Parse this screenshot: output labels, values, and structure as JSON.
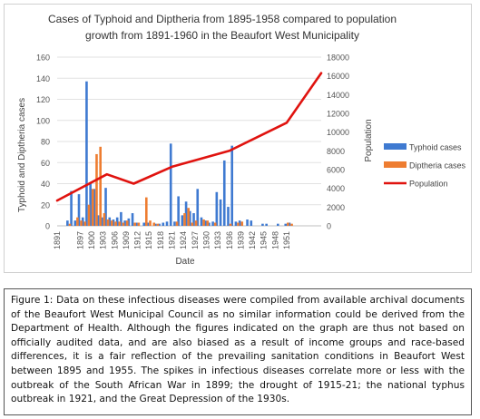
{
  "chart_data": {
    "type": "bar",
    "title_line1": "Cases of Typhoid and Diptheria from 1895-1958 compared to population",
    "title_line2": "growth from 1891-1960 in the Beaufort West Municipality",
    "xlabel": "Date",
    "ylabel_left": "Typhoid and Diptheria cases",
    "ylabel_right": "Population",
    "ylim_left": [
      0,
      160
    ],
    "ylim_right": [
      0,
      18000
    ],
    "yticks_left": [
      "0",
      "20",
      "40",
      "60",
      "80",
      "100",
      "120",
      "140",
      "160"
    ],
    "yticks_right": [
      "0",
      "2000",
      "4000",
      "6000",
      "8000",
      "10000",
      "12000",
      "14000",
      "16000",
      "18000"
    ],
    "xticks": [
      "1891",
      "1897",
      "1900",
      "1903",
      "1906",
      "1909",
      "1912",
      "1915",
      "1918",
      "1921",
      "1924",
      "1927",
      "1930",
      "1933",
      "1936",
      "1939",
      "1942",
      "1945",
      "1948",
      "1951"
    ],
    "x_start": 1891,
    "x_end": 1960,
    "legend": [
      "Typhoid cases",
      "Diptheria cases",
      "Population"
    ],
    "legend_position": "right",
    "grid": "horizontal",
    "series": [
      {
        "name": "Typhoid cases",
        "color": "#3f7ad1",
        "points": [
          [
            1894,
            5
          ],
          [
            1895,
            33
          ],
          [
            1896,
            5
          ],
          [
            1897,
            30
          ],
          [
            1898,
            8
          ],
          [
            1899,
            137
          ],
          [
            1900,
            40
          ],
          [
            1901,
            35
          ],
          [
            1902,
            10
          ],
          [
            1903,
            8
          ],
          [
            1904,
            36
          ],
          [
            1905,
            8
          ],
          [
            1906,
            6
          ],
          [
            1907,
            8
          ],
          [
            1908,
            13
          ],
          [
            1909,
            5
          ],
          [
            1910,
            7
          ],
          [
            1911,
            12
          ],
          [
            1912,
            3
          ],
          [
            1914,
            3
          ],
          [
            1915,
            3
          ],
          [
            1917,
            2
          ],
          [
            1918,
            2
          ],
          [
            1919,
            3
          ],
          [
            1920,
            4
          ],
          [
            1921,
            78
          ],
          [
            1922,
            4
          ],
          [
            1923,
            28
          ],
          [
            1924,
            10
          ],
          [
            1925,
            23
          ],
          [
            1926,
            14
          ],
          [
            1927,
            12
          ],
          [
            1928,
            35
          ],
          [
            1929,
            8
          ],
          [
            1930,
            5
          ],
          [
            1931,
            3
          ],
          [
            1932,
            4
          ],
          [
            1933,
            32
          ],
          [
            1934,
            25
          ],
          [
            1935,
            62
          ],
          [
            1936,
            18
          ],
          [
            1937,
            76
          ],
          [
            1938,
            4
          ],
          [
            1939,
            5
          ],
          [
            1941,
            6
          ],
          [
            1942,
            5
          ],
          [
            1945,
            2
          ],
          [
            1946,
            2
          ],
          [
            1949,
            2
          ],
          [
            1951,
            2
          ],
          [
            1952,
            3
          ]
        ]
      },
      {
        "name": "Diptheria cases",
        "color": "#ee7d31",
        "points": [
          [
            1894,
            2
          ],
          [
            1896,
            8
          ],
          [
            1897,
            5
          ],
          [
            1898,
            4
          ],
          [
            1899,
            20
          ],
          [
            1900,
            35
          ],
          [
            1901,
            68
          ],
          [
            1902,
            75
          ],
          [
            1903,
            12
          ],
          [
            1904,
            6
          ],
          [
            1905,
            5
          ],
          [
            1906,
            4
          ],
          [
            1907,
            4
          ],
          [
            1908,
            3
          ],
          [
            1909,
            5
          ],
          [
            1911,
            3
          ],
          [
            1912,
            3
          ],
          [
            1914,
            27
          ],
          [
            1915,
            5
          ],
          [
            1916,
            3
          ],
          [
            1917,
            2
          ],
          [
            1922,
            4
          ],
          [
            1924,
            12
          ],
          [
            1925,
            17
          ],
          [
            1926,
            3
          ],
          [
            1927,
            5
          ],
          [
            1929,
            6
          ],
          [
            1930,
            5
          ],
          [
            1932,
            3
          ],
          [
            1936,
            2
          ],
          [
            1938,
            3
          ],
          [
            1939,
            4
          ],
          [
            1951,
            3
          ],
          [
            1952,
            2
          ]
        ]
      },
      {
        "name": "Population",
        "color": "#e0130f",
        "points": [
          [
            1891,
            2700
          ],
          [
            1904,
            5500
          ],
          [
            1911,
            4500
          ],
          [
            1921,
            6300
          ],
          [
            1936,
            8000
          ],
          [
            1951,
            11000
          ],
          [
            1960,
            16300
          ]
        ]
      }
    ]
  },
  "caption": "Figure 1: Data on these infectious diseases were compiled from available archival documents of the Beaufort West Municipal Council as no similar information could be derived from the Department of Health. Although the figures indicated on the graph are thus not based on officially audited data, and are also biased as a result of income groups and race-based differences, it is a fair reflection of the prevailing sanitation conditions in Beaufort West between 1895 and 1955. The spikes in infectious diseases correlate more or less with the outbreak of the South African War in 1899; the drought of 1915-21; the national typhus outbreak in 1921, and the Great Depression of the 1930s."
}
